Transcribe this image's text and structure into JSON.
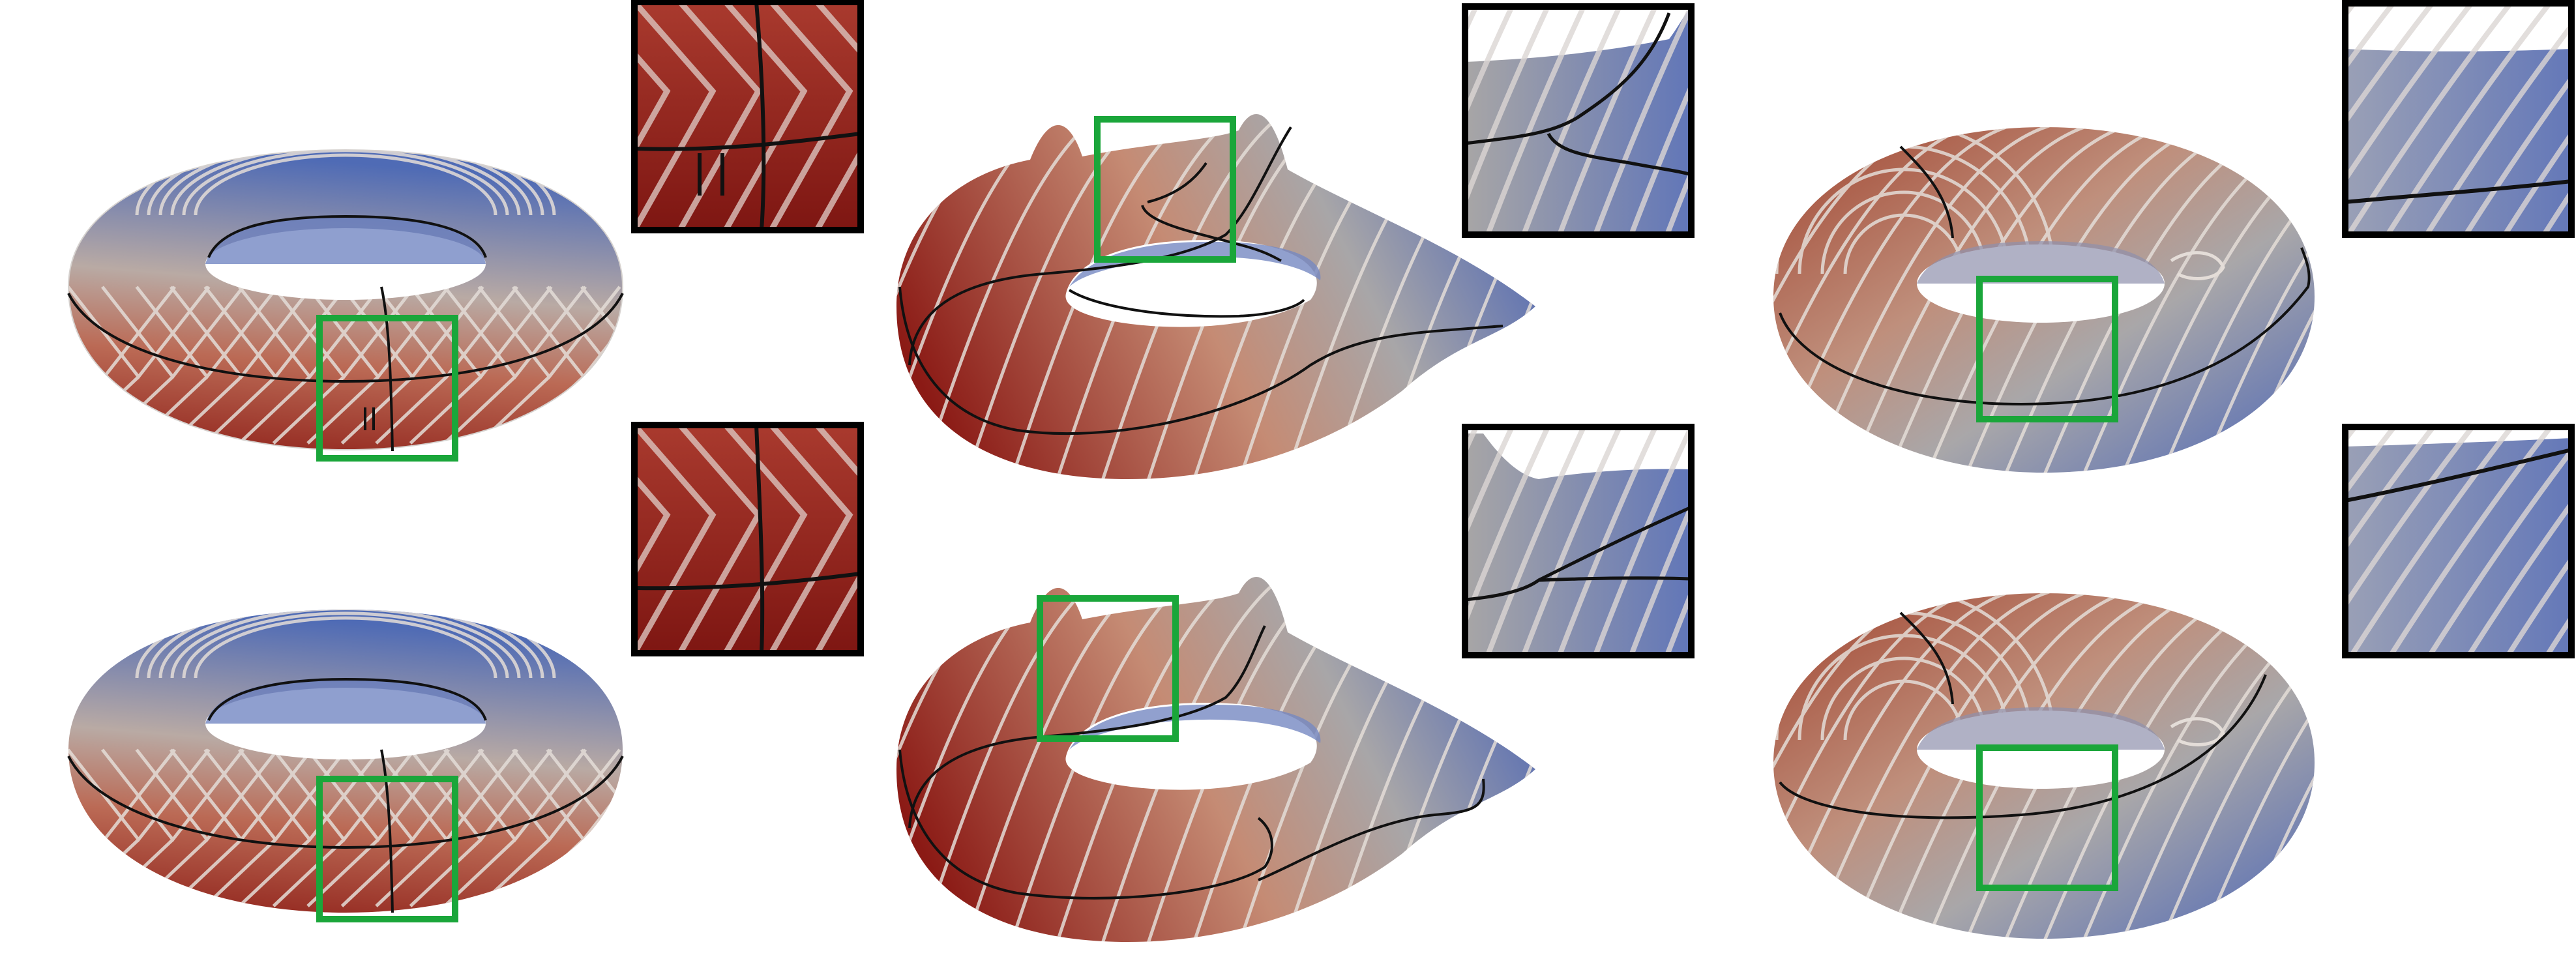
{
  "figure": {
    "panel_count": 6,
    "inset_count": 6,
    "colors": {
      "warm": "#a8352c",
      "warm_light": "#c07a68",
      "neutral": "#a8a29e",
      "cool": "#5c74b8",
      "cool_light": "#8e9cc8",
      "contour": "#e6e0dc",
      "cut": "#111111",
      "highlight_box": "#1aa63a",
      "inset_frame": "#000000"
    }
  }
}
